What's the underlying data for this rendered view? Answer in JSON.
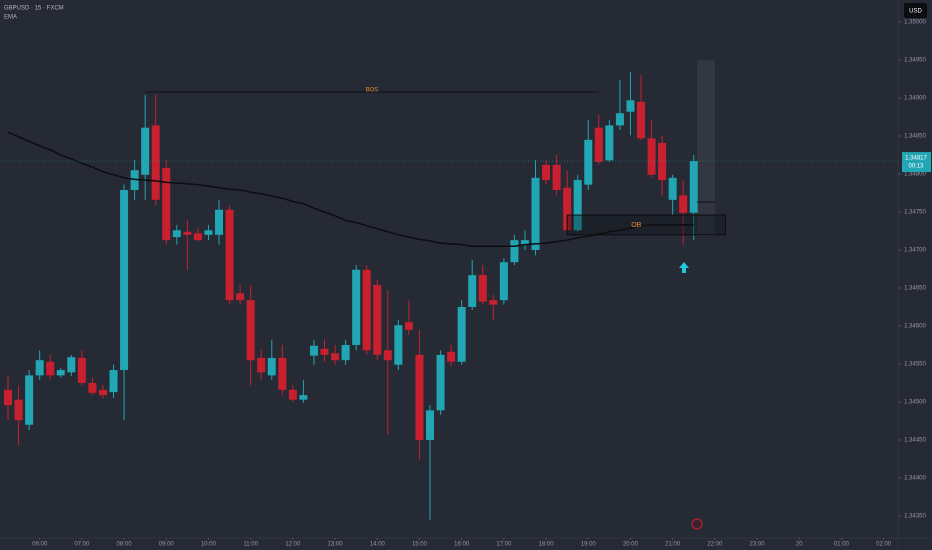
{
  "chart_data": {
    "type": "candlestick",
    "title": "GBPUSD · 15 · FXCM",
    "currency": "USD",
    "up_color": "#22a6b3",
    "down_color": "#c8202e",
    "ylim": [
      1.34321,
      1.35029
    ],
    "xlim": [
      -0.76,
      84.36
    ],
    "yticks": [
      {
        "value": 1.35,
        "label": "1.35000"
      },
      {
        "value": 1.3495,
        "label": "1.34950"
      },
      {
        "value": 1.349,
        "label": "1.34900"
      },
      {
        "value": 1.3485,
        "label": "1.34850"
      },
      {
        "value": 1.348,
        "label": "1.34800"
      },
      {
        "value": 1.3475,
        "label": "1.34750"
      },
      {
        "value": 1.347,
        "label": "1.34700"
      },
      {
        "value": 1.3465,
        "label": "1.34650"
      },
      {
        "value": 1.346,
        "label": "1.34600"
      },
      {
        "value": 1.3455,
        "label": "1.34550"
      },
      {
        "value": 1.345,
        "label": "1.34500"
      },
      {
        "value": 1.3445,
        "label": "1.34450"
      },
      {
        "value": 1.344,
        "label": "1.34400"
      },
      {
        "value": 1.3435,
        "label": "1.34350"
      }
    ],
    "xticks": [
      {
        "value": 3,
        "label": "06:00"
      },
      {
        "value": 7,
        "label": "07:00"
      },
      {
        "value": 11,
        "label": "08:00"
      },
      {
        "value": 15,
        "label": "09:00"
      },
      {
        "value": 19,
        "label": "10:00"
      },
      {
        "value": 23,
        "label": "11:00"
      },
      {
        "value": 27,
        "label": "12:00"
      },
      {
        "value": 31,
        "label": "13:00"
      },
      {
        "value": 35,
        "label": "14:00"
      },
      {
        "value": 39,
        "label": "15:00"
      },
      {
        "value": 43,
        "label": "16:00"
      },
      {
        "value": 47,
        "label": "17:00"
      },
      {
        "value": 51,
        "label": "18:00"
      },
      {
        "value": 55,
        "label": "19:00"
      },
      {
        "value": 59,
        "label": "20:00"
      },
      {
        "value": 63,
        "label": "21:00"
      },
      {
        "value": 67,
        "label": "22:00"
      },
      {
        "value": 71,
        "label": "23:00"
      },
      {
        "value": 75,
        "label": "20"
      },
      {
        "value": 79,
        "label": "01:00"
      },
      {
        "value": 83,
        "label": "02:00"
      }
    ],
    "open": [
      1.34516,
      1.34503,
      1.3447,
      1.34535,
      1.34553,
      1.34535,
      1.34539,
      1.34558,
      1.34525,
      1.34516,
      1.34513,
      1.34542,
      1.34779,
      1.34799,
      1.34864,
      1.34808,
      1.34717,
      1.34724,
      1.34722,
      1.3472,
      1.3472,
      1.34753,
      1.34643,
      1.34634,
      1.34558,
      1.34535,
      1.34558,
      1.34516,
      1.34503,
      1.34561,
      1.3457,
      1.34564,
      1.34555,
      1.34575,
      1.34674,
      1.34654,
      1.34568,
      1.34549,
      1.34605,
      1.34562,
      1.3445,
      1.34489,
      1.34566,
      1.34553,
      1.34625,
      1.34667,
      1.34634,
      1.34634,
      1.34684,
      1.34707,
      1.347,
      1.34812,
      1.34812,
      1.34782,
      1.34726,
      1.34786,
      1.34861,
      1.34818,
      1.34864,
      1.34882,
      1.34895,
      1.34847,
      1.34841,
      1.34766,
      1.34772,
      1.34749
    ],
    "high": [
      1.34535,
      1.34522,
      1.34542,
      1.34568,
      1.34562,
      1.34545,
      1.34562,
      1.34568,
      1.34532,
      1.34522,
      1.34549,
      1.34786,
      1.34818,
      1.34904,
      1.34904,
      1.34818,
      1.34733,
      1.34739,
      1.34729,
      1.34733,
      1.34766,
      1.34759,
      1.34654,
      1.34654,
      1.34568,
      1.34582,
      1.34575,
      1.34522,
      1.34529,
      1.34582,
      1.34582,
      1.34575,
      1.34582,
      1.3468,
      1.3468,
      1.34661,
      1.34647,
      1.34608,
      1.34634,
      1.34595,
      1.34496,
      1.34568,
      1.34575,
      1.34634,
      1.34687,
      1.3468,
      1.34641,
      1.34689,
      1.3472,
      1.34726,
      1.34818,
      1.34818,
      1.34825,
      1.34805,
      1.34799,
      1.34871,
      1.34878,
      1.34871,
      1.34924,
      1.34934,
      1.3493,
      1.34871,
      1.34851,
      1.34799,
      1.34792,
      1.34825
    ],
    "low": [
      1.34476,
      1.34443,
      1.34463,
      1.34529,
      1.34529,
      1.34532,
      1.34534,
      1.34522,
      1.34509,
      1.34505,
      1.34505,
      1.34476,
      1.34766,
      1.34766,
      1.34759,
      1.34707,
      1.34707,
      1.34674,
      1.34711,
      1.34713,
      1.34707,
      1.34628,
      1.34628,
      1.34522,
      1.34529,
      1.34529,
      1.34509,
      1.345,
      1.34499,
      1.34549,
      1.34553,
      1.34549,
      1.34549,
      1.34568,
      1.34562,
      1.34555,
      1.34457,
      1.34542,
      1.34588,
      1.34424,
      1.34345,
      1.34483,
      1.34547,
      1.34549,
      1.34621,
      1.34628,
      1.34608,
      1.34628,
      1.3468,
      1.347,
      1.34693,
      1.34786,
      1.34772,
      1.3472,
      1.34724,
      1.34779,
      1.34812,
      1.34816,
      1.34858,
      1.34851,
      1.34845,
      1.34795,
      1.34772,
      1.34746,
      1.34707,
      1.34713
    ],
    "close": [
      1.34496,
      1.34476,
      1.34535,
      1.34555,
      1.34535,
      1.34542,
      1.34559,
      1.34525,
      1.34512,
      1.34509,
      1.34542,
      1.34779,
      1.34805,
      1.34861,
      1.34766,
      1.34713,
      1.34726,
      1.3472,
      1.34713,
      1.34726,
      1.34753,
      1.34634,
      1.34634,
      1.34555,
      1.34539,
      1.34558,
      1.34516,
      1.34503,
      1.34509,
      1.34574,
      1.34562,
      1.34555,
      1.34575,
      1.34674,
      1.34568,
      1.34562,
      1.34555,
      1.34601,
      1.34595,
      1.3445,
      1.34489,
      1.34562,
      1.34553,
      1.34625,
      1.34667,
      1.34632,
      1.34628,
      1.34684,
      1.34713,
      1.34713,
      1.34795,
      1.34792,
      1.34779,
      1.34726,
      1.34792,
      1.34845,
      1.34816,
      1.34864,
      1.3488,
      1.34897,
      1.34847,
      1.34799,
      1.34792,
      1.34795,
      1.34749,
      1.34817
    ],
    "indicators": [
      {
        "name": "EMA",
        "color": "#0c0d10",
        "values": [
          1.34855,
          1.34849,
          1.34843,
          1.34837,
          1.34832,
          1.34825,
          1.3482,
          1.34814,
          1.34809,
          1.34803,
          1.34799,
          1.34795,
          1.34793,
          1.34792,
          1.34791,
          1.34789,
          1.34788,
          1.34787,
          1.34786,
          1.34784,
          1.34782,
          1.3478,
          1.34779,
          1.34776,
          1.34774,
          1.34771,
          1.34768,
          1.34764,
          1.34761,
          1.34755,
          1.3475,
          1.34745,
          1.34739,
          1.34736,
          1.34732,
          1.34728,
          1.34724,
          1.3472,
          1.34717,
          1.34714,
          1.34712,
          1.34709,
          1.34708,
          1.34707,
          1.34705,
          1.34705,
          1.34705,
          1.34705,
          1.34705,
          1.34707,
          1.34708,
          1.34709,
          1.34711,
          1.34713,
          1.34716,
          1.34718,
          1.34721,
          1.34724,
          1.34726,
          1.34729,
          1.34732,
          1.34733,
          1.34733,
          1.34733,
          1.34733,
          1.34733
        ]
      }
    ],
    "annotations": [
      {
        "label": "BOS",
        "price": 1.34908,
        "from": 13,
        "to": 56
      },
      {
        "label": "OB",
        "top": 1.34746,
        "bottom": 1.3472,
        "from": 53,
        "to": 68
      }
    ],
    "last_price": 1.34817,
    "countdown": "00:13"
  }
}
